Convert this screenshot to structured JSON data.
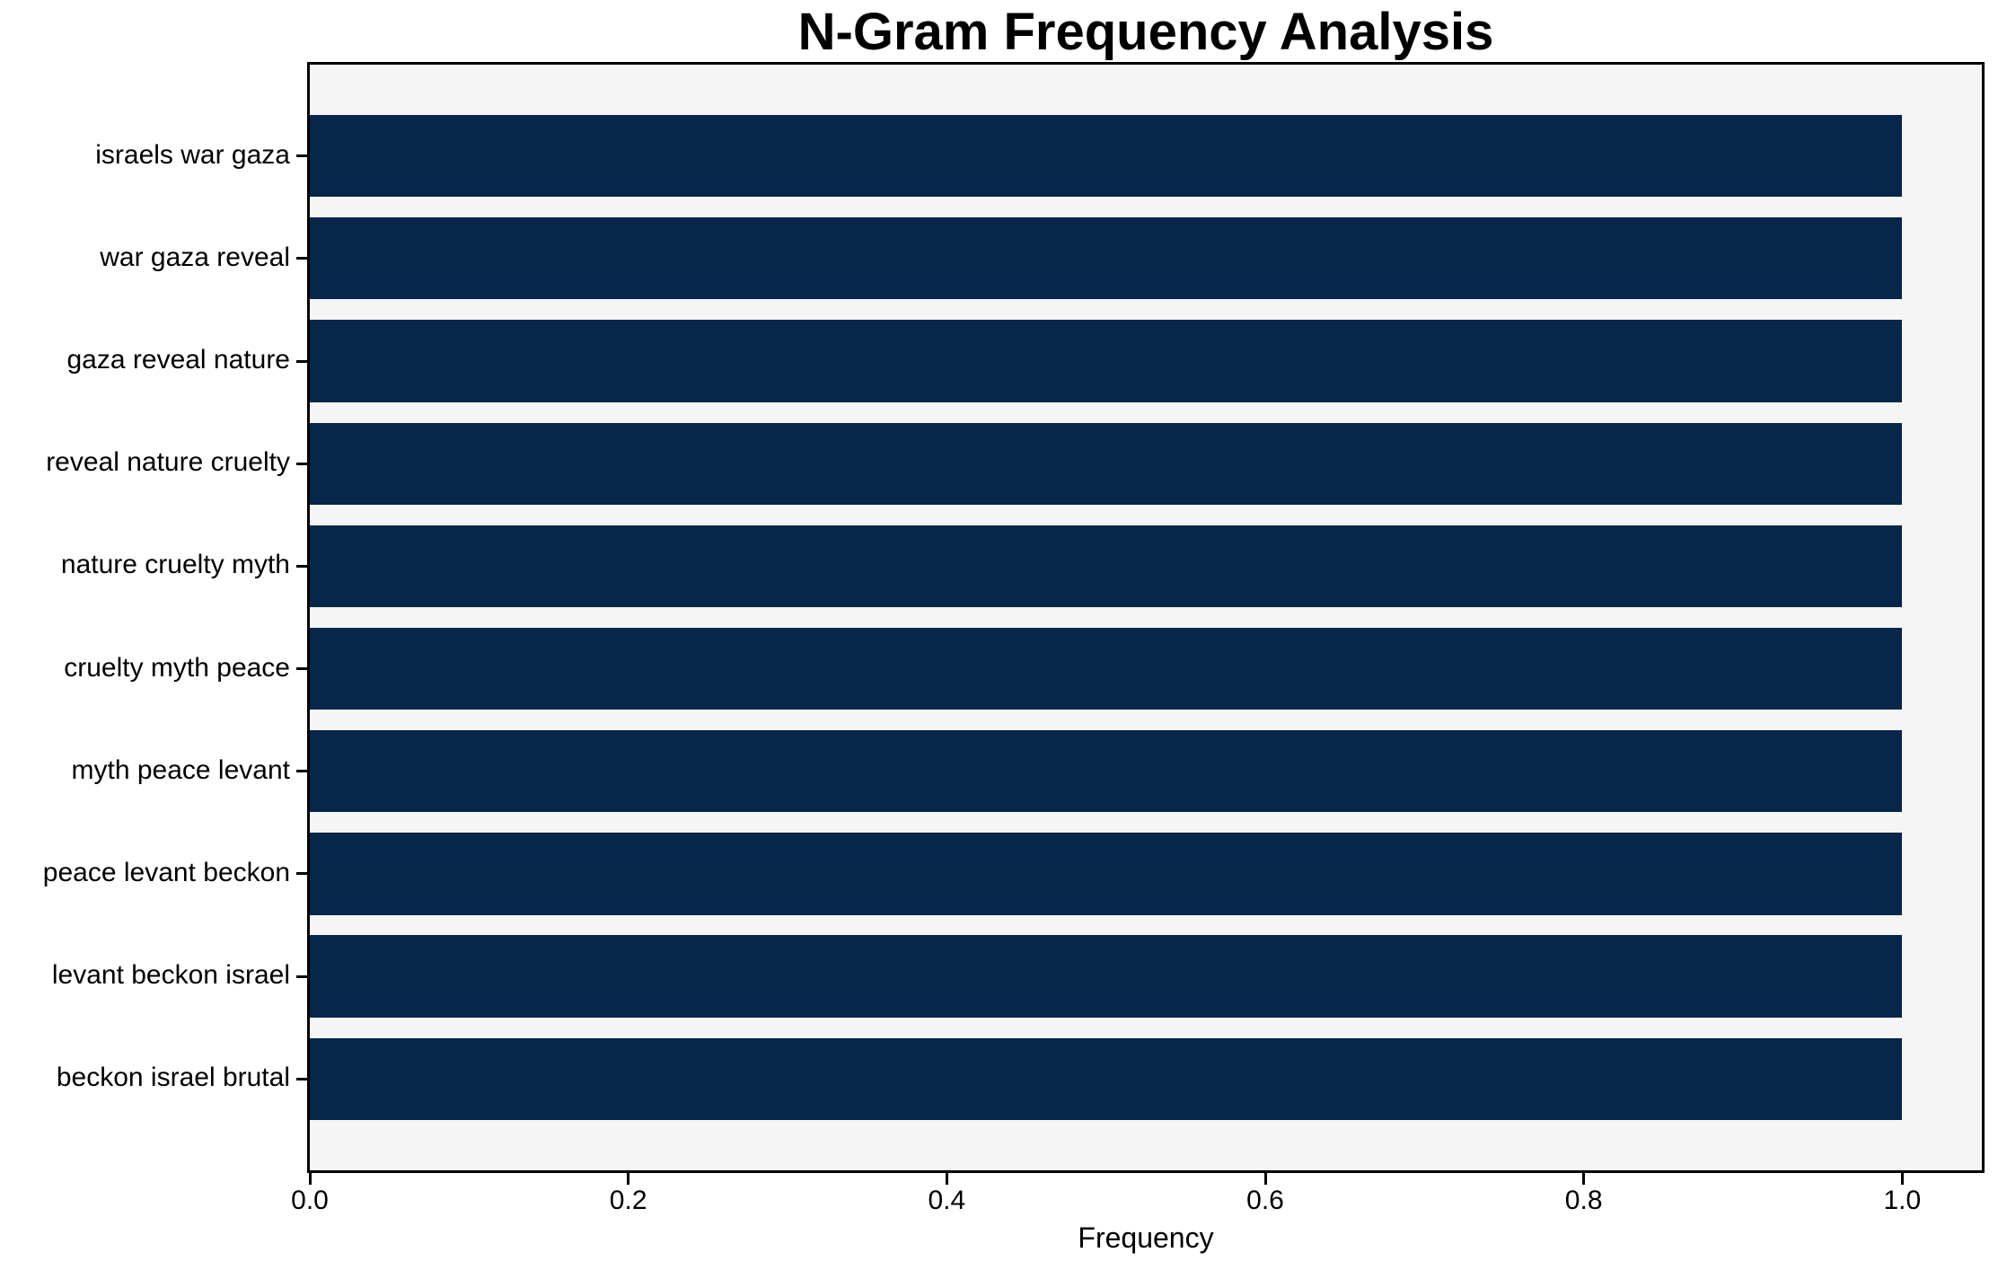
{
  "chart_data": {
    "type": "bar",
    "orientation": "horizontal",
    "title": "N-Gram Frequency Analysis",
    "xlabel": "Frequency",
    "ylabel": "",
    "categories": [
      "israels war gaza",
      "war gaza reveal",
      "gaza reveal nature",
      "reveal nature cruelty",
      "nature cruelty myth",
      "cruelty myth peace",
      "myth peace levant",
      "peace levant beckon",
      "levant beckon israel",
      "beckon israel brutal"
    ],
    "values": [
      1.0,
      1.0,
      1.0,
      1.0,
      1.0,
      1.0,
      1.0,
      1.0,
      1.0,
      1.0
    ],
    "xticks": [
      "0.0",
      "0.2",
      "0.4",
      "0.6",
      "0.8",
      "1.0"
    ],
    "xtick_values": [
      0.0,
      0.2,
      0.4,
      0.6,
      0.8,
      1.0
    ],
    "xlim": [
      0,
      1.05
    ],
    "grid": false,
    "legend": null,
    "colors": {
      "bar": "#08254a",
      "plot_background": "#f5f5f5",
      "figure_background": "#ffffff",
      "text": "#000000",
      "spine": "#000000"
    }
  }
}
